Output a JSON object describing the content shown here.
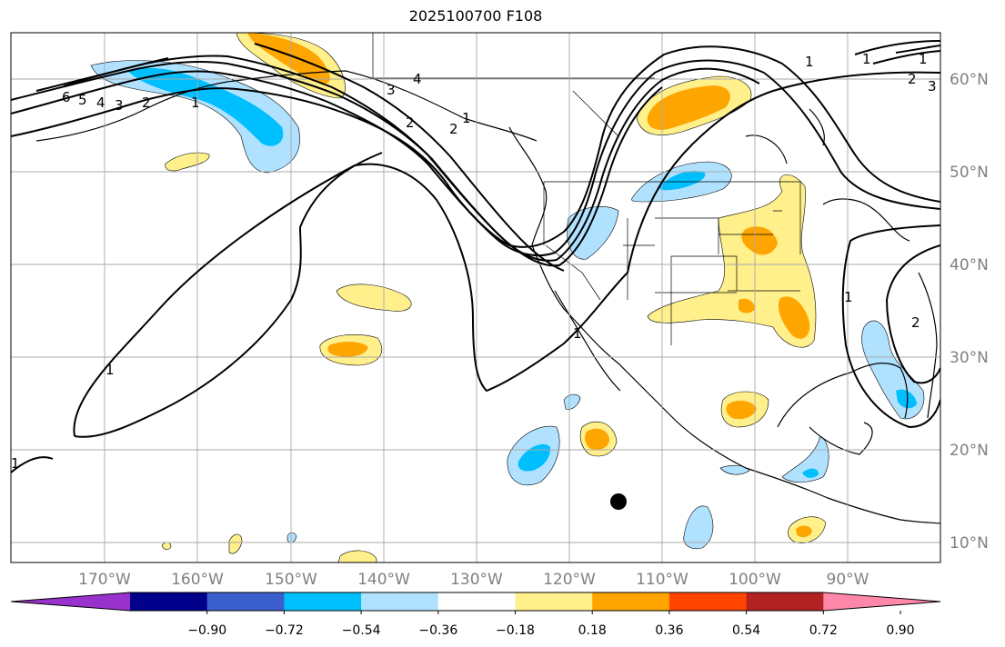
{
  "title": "2025100700 F108",
  "longitude_labels": [
    "170°W",
    "160°W",
    "150°W",
    "140°W",
    "130°W",
    "120°W",
    "110°W",
    "100°W",
    "90°W"
  ],
  "latitude_labels": [
    "60°N",
    "50°N",
    "40°N",
    "30°N",
    "20°N",
    "10°N"
  ],
  "colorbar": {
    "ticks": [
      "−0.90",
      "−0.72",
      "−0.54",
      "−0.36",
      "−0.18",
      "0.18",
      "0.36",
      "0.54",
      "0.72",
      "0.90"
    ],
    "colors": [
      "#9932cc",
      "#00008b",
      "#3a5fcd",
      "#00bfff",
      "#b0e2ff",
      "#ffffff",
      "#fff08c",
      "#ffa500",
      "#ff4500",
      "#b22222",
      "#ff88aa"
    ]
  },
  "contour_labels": [
    "6",
    "5",
    "4",
    "3",
    "2",
    "1",
    "1",
    "1",
    "1",
    "1",
    "2",
    "3",
    "4",
    "2",
    "1",
    "1",
    "2",
    "3",
    "1",
    "2",
    "1"
  ],
  "colors": {
    "grid": "#a9a9a9",
    "contour": "#000000",
    "axis_text": "#808080"
  }
}
